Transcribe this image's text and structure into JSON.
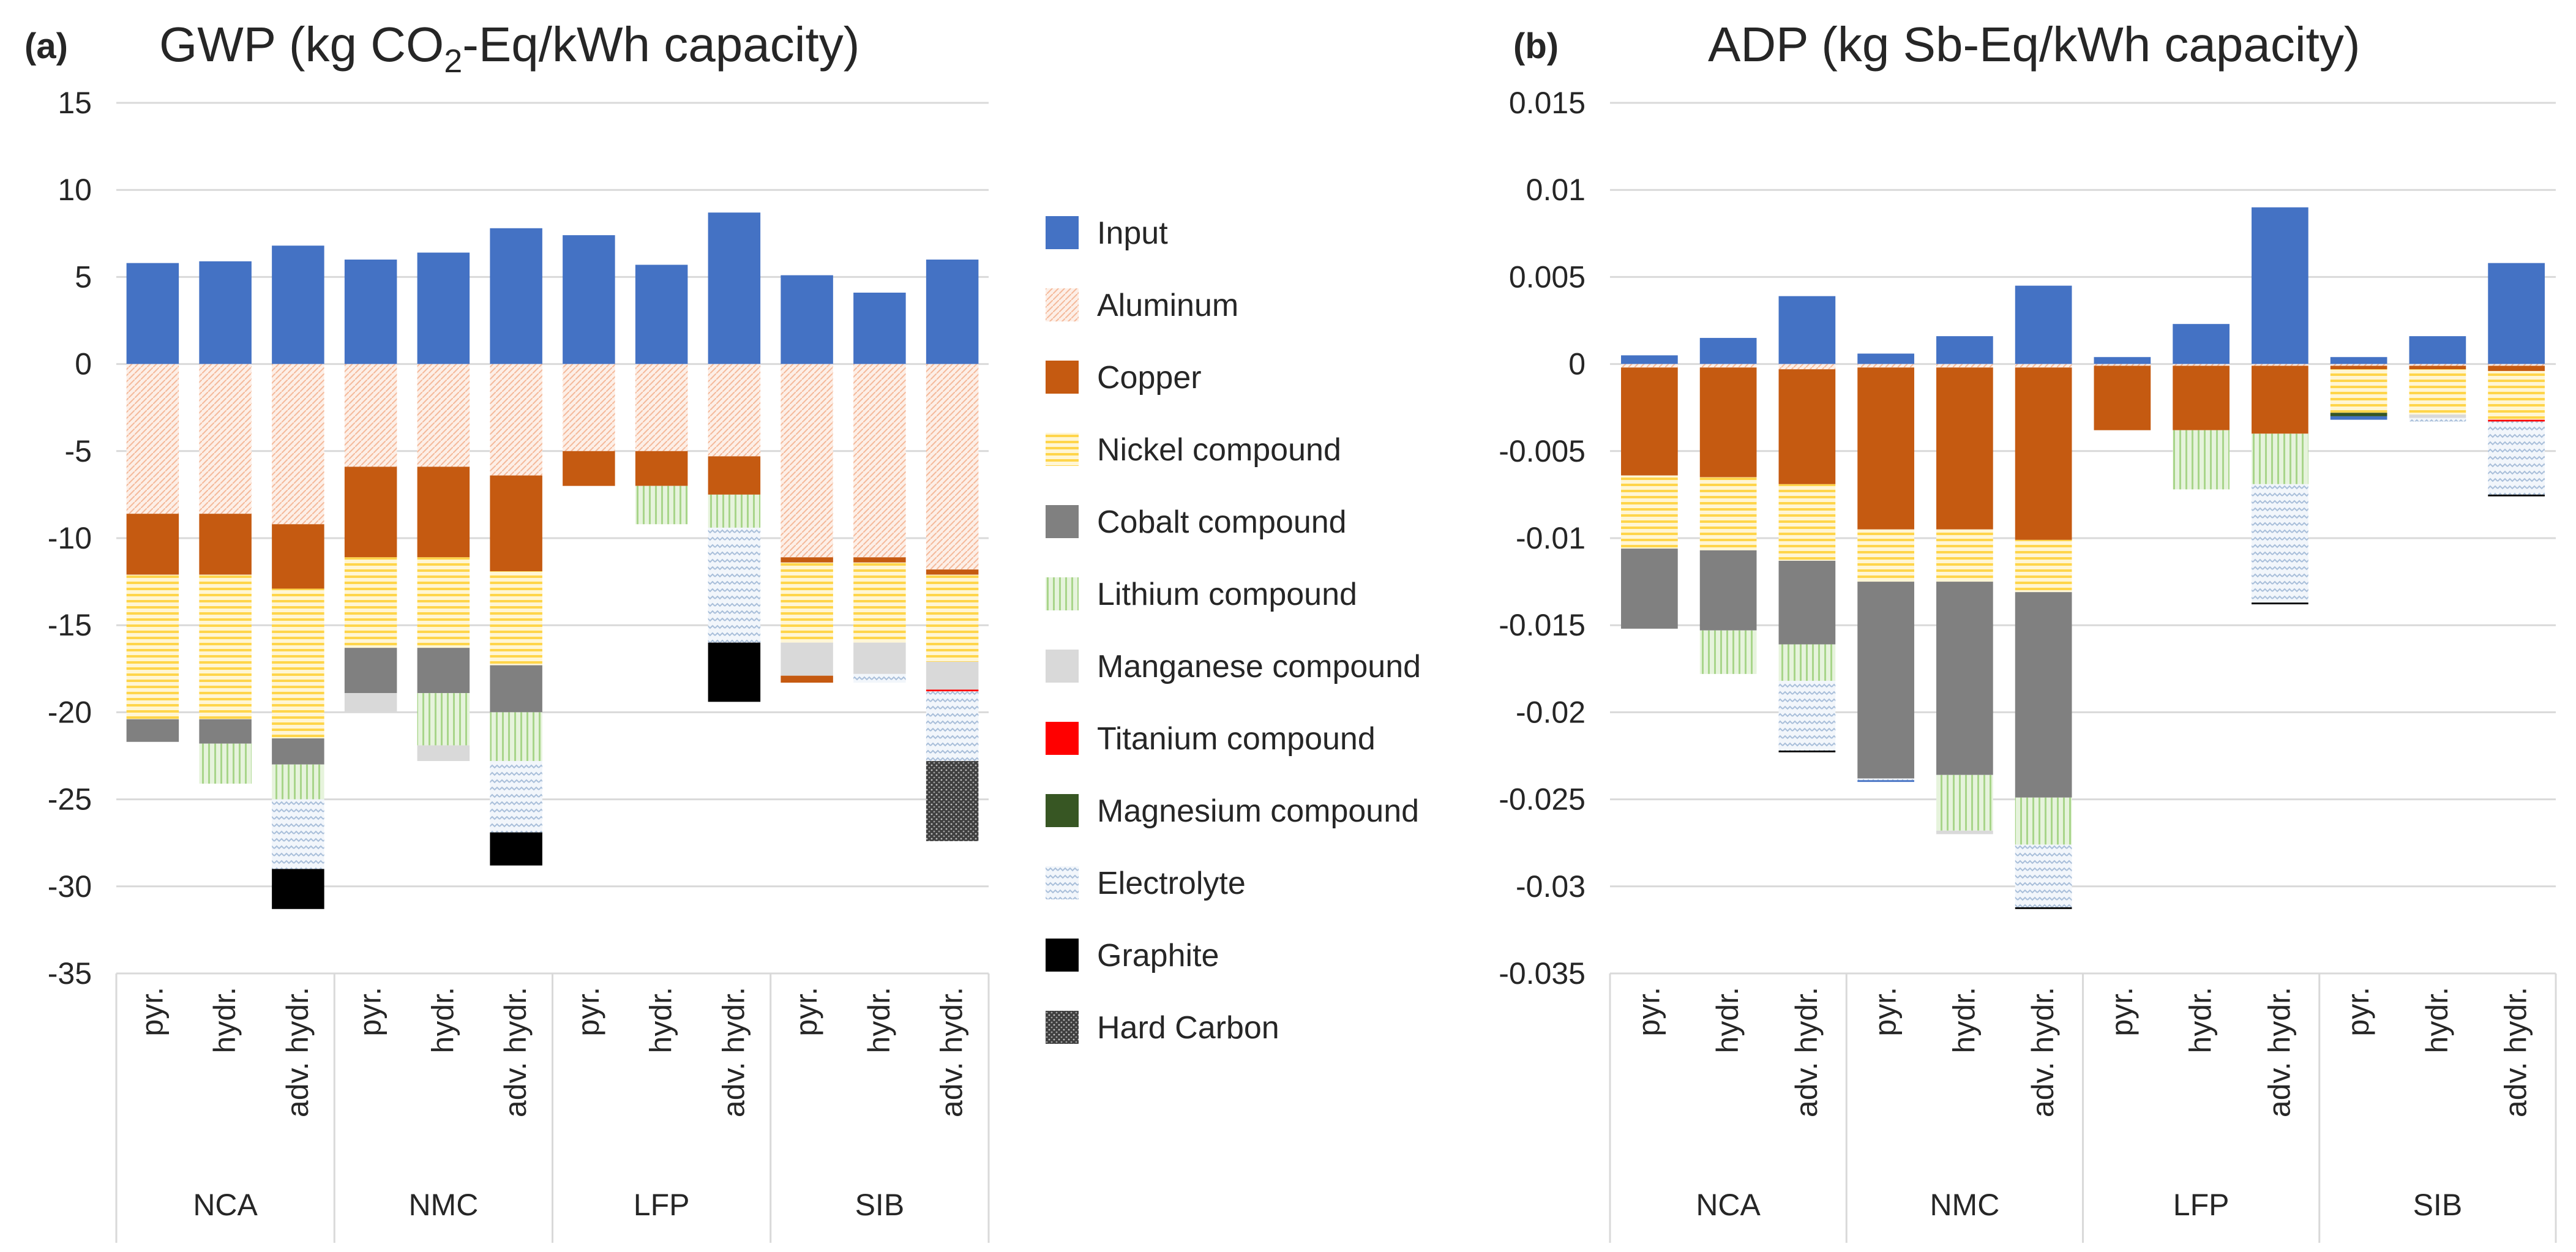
{
  "colors": {
    "Input": "#4472C4",
    "Aluminum": "#F8CBAD",
    "Copper": "#C55A11",
    "Nickel compound": "#FFD966",
    "Cobalt compound": "#808080",
    "Lithium compound": "#70AD47",
    "Manganese compound": "#D9D9D9",
    "Titanium compound": "#FF0000",
    "Magnesium compound": "#375623",
    "Electrolyte": "#BDD7EE",
    "Graphite": "#000000",
    "Hard Carbon": "#595959"
  },
  "legend": [
    "Input",
    "Aluminum",
    "Copper",
    "Nickel compound",
    "Cobalt compound",
    "Lithium compound",
    "Manganese compound",
    "Titanium compound",
    "Magnesium compound",
    "Electrolyte",
    "Graphite",
    "Hard Carbon"
  ],
  "chart_data": [
    {
      "type": "bar",
      "stacked": true,
      "panel": "(a)",
      "title": "GWP (kg CO",
      "title_sub": "2",
      "title_rest": "-Eq/kWh capacity)",
      "ylim": [
        -35,
        15
      ],
      "yticks": [
        15,
        10,
        5,
        0,
        -5,
        -10,
        -15,
        -20,
        -25,
        -30,
        -35
      ],
      "ytick_labels": [
        "15",
        "10",
        "5",
        "0",
        "-5",
        "-10",
        "-15",
        "-20",
        "-25",
        "-30",
        "-35"
      ],
      "groups": [
        "NCA",
        "NMC",
        "LFP",
        "SIB"
      ],
      "categories": [
        "pyr.",
        "hydr.",
        "adv. hydr."
      ],
      "bars": [
        {
          "group": "NCA",
          "cat": "pyr.",
          "stack": [
            [
              "Input",
              5.8
            ],
            [
              "Aluminum",
              -8.6
            ],
            [
              "Copper",
              -3.5
            ],
            [
              "Nickel compound",
              -8.3
            ],
            [
              "Cobalt compound",
              -1.3
            ]
          ]
        },
        {
          "group": "NCA",
          "cat": "hydr.",
          "stack": [
            [
              "Input",
              5.9
            ],
            [
              "Aluminum",
              -8.6
            ],
            [
              "Copper",
              -3.5
            ],
            [
              "Nickel compound",
              -8.3
            ],
            [
              "Cobalt compound",
              -1.4
            ],
            [
              "Lithium compound",
              -2.3
            ]
          ]
        },
        {
          "group": "NCA",
          "cat": "adv. hydr.",
          "stack": [
            [
              "Input",
              6.8
            ],
            [
              "Aluminum",
              -9.2
            ],
            [
              "Copper",
              -3.7
            ],
            [
              "Nickel compound",
              -8.6
            ],
            [
              "Cobalt compound",
              -1.5
            ],
            [
              "Lithium compound",
              -2.0
            ],
            [
              "Electrolyte",
              -4.0
            ],
            [
              "Graphite",
              -2.3
            ]
          ]
        },
        {
          "group": "NMC",
          "cat": "pyr.",
          "stack": [
            [
              "Input",
              6.0
            ],
            [
              "Aluminum",
              -5.9
            ],
            [
              "Copper",
              -5.2
            ],
            [
              "Nickel compound",
              -5.2
            ],
            [
              "Cobalt compound",
              -2.6
            ],
            [
              "Manganese compound",
              -1.1
            ]
          ]
        },
        {
          "group": "NMC",
          "cat": "hydr.",
          "stack": [
            [
              "Input",
              6.4
            ],
            [
              "Aluminum",
              -5.9
            ],
            [
              "Copper",
              -5.2
            ],
            [
              "Nickel compound",
              -5.2
            ],
            [
              "Cobalt compound",
              -2.6
            ],
            [
              "Lithium compound",
              -3.0
            ],
            [
              "Manganese compound",
              -0.9
            ]
          ]
        },
        {
          "group": "NMC",
          "cat": "adv. hydr.",
          "stack": [
            [
              "Input",
              7.8
            ],
            [
              "Aluminum",
              -6.4
            ],
            [
              "Copper",
              -5.5
            ],
            [
              "Nickel compound",
              -5.4
            ],
            [
              "Cobalt compound",
              -2.7
            ],
            [
              "Lithium compound",
              -2.8
            ],
            [
              "Electrolyte",
              -4.1
            ],
            [
              "Graphite",
              -1.9
            ]
          ]
        },
        {
          "group": "LFP",
          "cat": "pyr.",
          "stack": [
            [
              "Input",
              7.4
            ],
            [
              "Aluminum",
              -5.0
            ],
            [
              "Copper",
              -2.0
            ]
          ]
        },
        {
          "group": "LFP",
          "cat": "hydr.",
          "stack": [
            [
              "Input",
              5.7
            ],
            [
              "Aluminum",
              -5.0
            ],
            [
              "Copper",
              -2.0
            ],
            [
              "Lithium compound",
              -2.2
            ]
          ]
        },
        {
          "group": "LFP",
          "cat": "adv. hydr.",
          "stack": [
            [
              "Input",
              8.7
            ],
            [
              "Aluminum",
              -5.3
            ],
            [
              "Copper",
              -2.2
            ],
            [
              "Lithium compound",
              -1.9
            ],
            [
              "Electrolyte",
              -6.6
            ],
            [
              "Graphite",
              -3.4
            ]
          ]
        },
        {
          "group": "SIB",
          "cat": "pyr.",
          "stack": [
            [
              "Input",
              5.1
            ],
            [
              "Aluminum",
              -11.1
            ],
            [
              "Copper",
              -0.3
            ],
            [
              "Nickel compound",
              -4.6
            ],
            [
              "Manganese compound",
              -1.9
            ],
            [
              "Copper",
              -0.4
            ]
          ]
        },
        {
          "group": "SIB",
          "cat": "hydr.",
          "stack": [
            [
              "Input",
              4.1
            ],
            [
              "Aluminum",
              -11.1
            ],
            [
              "Copper",
              -0.3
            ],
            [
              "Nickel compound",
              -4.6
            ],
            [
              "Manganese compound",
              -1.8
            ],
            [
              "Electrolyte",
              -0.5
            ]
          ]
        },
        {
          "group": "SIB",
          "cat": "adv. hydr.",
          "stack": [
            [
              "Input",
              6.0
            ],
            [
              "Aluminum",
              -11.8
            ],
            [
              "Copper",
              -0.3
            ],
            [
              "Nickel compound",
              -5.0
            ],
            [
              "Manganese compound",
              -1.6
            ],
            [
              "Titanium compound",
              -0.1
            ],
            [
              "Electrolyte",
              -4.0
            ],
            [
              "Hard Carbon",
              -4.6
            ]
          ]
        }
      ]
    },
    {
      "type": "bar",
      "stacked": true,
      "panel": "(b)",
      "title": "ADP (kg Sb-Eq/kWh capacity)",
      "ylim": [
        -0.035,
        0.015
      ],
      "yticks": [
        0.015,
        0.01,
        0.005,
        0,
        -0.005,
        -0.01,
        -0.015,
        -0.02,
        -0.025,
        -0.03,
        -0.035
      ],
      "ytick_labels": [
        "0.015",
        "0.01",
        "0.005",
        "0",
        "-0.005",
        "-0.01",
        "-0.015",
        "-0.02",
        "-0.025",
        "-0.03",
        "-0.035"
      ],
      "groups": [
        "NCA",
        "NMC",
        "LFP",
        "SIB"
      ],
      "categories": [
        "pyr.",
        "hydr.",
        "adv. hydr."
      ],
      "bars": [
        {
          "group": "NCA",
          "cat": "pyr.",
          "stack": [
            [
              "Input",
              0.0005
            ],
            [
              "Aluminum",
              -0.0002
            ],
            [
              "Copper",
              -0.0062
            ],
            [
              "Nickel compound",
              -0.0042
            ],
            [
              "Cobalt compound",
              -0.0046
            ]
          ]
        },
        {
          "group": "NCA",
          "cat": "hydr.",
          "stack": [
            [
              "Input",
              0.0015
            ],
            [
              "Aluminum",
              -0.0002
            ],
            [
              "Copper",
              -0.0063
            ],
            [
              "Nickel compound",
              -0.0042
            ],
            [
              "Cobalt compound",
              -0.0046
            ],
            [
              "Lithium compound",
              -0.0025
            ]
          ]
        },
        {
          "group": "NCA",
          "cat": "adv. hydr.",
          "stack": [
            [
              "Input",
              0.0039
            ],
            [
              "Aluminum",
              -0.0003
            ],
            [
              "Copper",
              -0.0066
            ],
            [
              "Nickel compound",
              -0.0044
            ],
            [
              "Cobalt compound",
              -0.0048
            ],
            [
              "Lithium compound",
              -0.0021
            ],
            [
              "Electrolyte",
              -0.004
            ],
            [
              "Graphite",
              -0.0001
            ]
          ]
        },
        {
          "group": "NMC",
          "cat": "pyr.",
          "stack": [
            [
              "Input",
              0.0006
            ],
            [
              "Aluminum",
              -0.0002
            ],
            [
              "Copper",
              -0.0093
            ],
            [
              "Nickel compound",
              -0.003
            ],
            [
              "Cobalt compound",
              -0.0113
            ],
            [
              "Electrolyte",
              -0.0001
            ],
            [
              "Input",
              -0.0001
            ]
          ]
        },
        {
          "group": "NMC",
          "cat": "hydr.",
          "stack": [
            [
              "Input",
              0.0016
            ],
            [
              "Aluminum",
              -0.0002
            ],
            [
              "Copper",
              -0.0093
            ],
            [
              "Nickel compound",
              -0.003
            ],
            [
              "Cobalt compound",
              -0.0111
            ],
            [
              "Lithium compound",
              -0.0032
            ],
            [
              "Manganese compound",
              -0.0002
            ]
          ]
        },
        {
          "group": "NMC",
          "cat": "adv. hydr.",
          "stack": [
            [
              "Input",
              0.0045
            ],
            [
              "Aluminum",
              -0.0002
            ],
            [
              "Copper",
              -0.0099
            ],
            [
              "Nickel compound",
              -0.003
            ],
            [
              "Cobalt compound",
              -0.0118
            ],
            [
              "Lithium compound",
              -0.0027
            ],
            [
              "Electrolyte",
              -0.0036
            ],
            [
              "Graphite",
              -0.0001
            ]
          ]
        },
        {
          "group": "LFP",
          "cat": "pyr.",
          "stack": [
            [
              "Input",
              0.0004
            ],
            [
              "Aluminum",
              -0.0001
            ],
            [
              "Copper",
              -0.0037
            ]
          ]
        },
        {
          "group": "LFP",
          "cat": "hydr.",
          "stack": [
            [
              "Input",
              0.0023
            ],
            [
              "Aluminum",
              -0.0001
            ],
            [
              "Copper",
              -0.0037
            ],
            [
              "Lithium compound",
              -0.0034
            ]
          ]
        },
        {
          "group": "LFP",
          "cat": "adv. hydr.",
          "stack": [
            [
              "Input",
              0.009
            ],
            [
              "Aluminum",
              -0.0001
            ],
            [
              "Copper",
              -0.0039
            ],
            [
              "Lithium compound",
              -0.0029
            ],
            [
              "Electrolyte",
              -0.0068
            ],
            [
              "Graphite",
              -0.0001
            ]
          ]
        },
        {
          "group": "SIB",
          "cat": "pyr.",
          "stack": [
            [
              "Input",
              0.0004
            ],
            [
              "Aluminum",
              -0.0001
            ],
            [
              "Copper",
              -0.0002
            ],
            [
              "Nickel compound",
              -0.0025
            ],
            [
              "Magnesium compound",
              -0.0002
            ],
            [
              "Input",
              -0.0002
            ]
          ]
        },
        {
          "group": "SIB",
          "cat": "hydr.",
          "stack": [
            [
              "Input",
              0.0016
            ],
            [
              "Aluminum",
              -0.0001
            ],
            [
              "Copper",
              -0.0002
            ],
            [
              "Nickel compound",
              -0.0026
            ],
            [
              "Manganese compound",
              -0.0002
            ],
            [
              "Electrolyte",
              -0.0002
            ]
          ]
        },
        {
          "group": "SIB",
          "cat": "adv. hydr.",
          "stack": [
            [
              "Input",
              0.0058
            ],
            [
              "Aluminum",
              -0.0001
            ],
            [
              "Copper",
              -0.0003
            ],
            [
              "Nickel compound",
              -0.0028
            ],
            [
              "Titanium compound",
              -0.0001
            ],
            [
              "Electrolyte",
              -0.0042
            ],
            [
              "Graphite",
              -0.0001
            ]
          ]
        }
      ]
    }
  ]
}
